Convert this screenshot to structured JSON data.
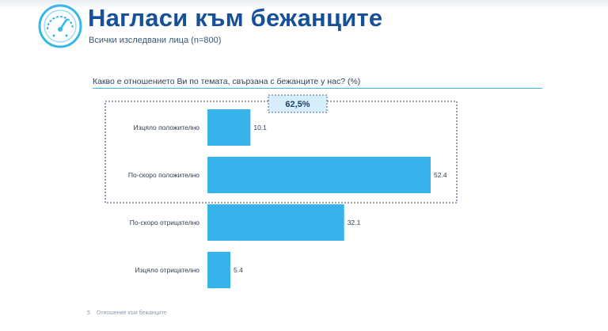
{
  "header": {
    "title": "Нагласи към бежанците",
    "subtitle": "Всички изследвани лица  (n=800)"
  },
  "question": "Какво е отношението Ви по темата, свързана с бежанците у нас? (%)",
  "footer": {
    "page_number": "5",
    "caption": "Отношение към бежанците"
  },
  "colors": {
    "bar": "#36b3ea",
    "title": "#16509b",
    "box_border": "#1f3f68",
    "callout_bg": "#d6eef9"
  },
  "chart_data": {
    "type": "bar",
    "orientation": "horizontal",
    "categories": [
      "Изцяло положително",
      "По-скоро положително",
      "По-скоро отрицателно",
      "Изцяло отрицателно"
    ],
    "values": [
      10.1,
      52.4,
      32.1,
      5.4
    ],
    "value_labels": [
      "10.1",
      "52.4",
      "32.1",
      "5.4"
    ],
    "annotation": {
      "label": "62,5%",
      "covers_categories": [
        "Изцяло положително",
        "По-скоро положително"
      ]
    },
    "grid": false,
    "legend": "none"
  }
}
